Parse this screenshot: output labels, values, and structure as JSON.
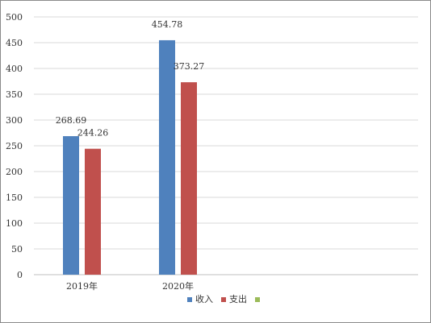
{
  "chart_data": {
    "type": "bar",
    "categories": [
      "2019年",
      "2020年",
      "",
      ""
    ],
    "series": [
      {
        "name": "收入",
        "color": "#4f81bd",
        "values": [
          268.69,
          454.78,
          null,
          null
        ]
      },
      {
        "name": "支出",
        "color": "#c0504d",
        "values": [
          244.26,
          373.27,
          null,
          null
        ]
      },
      {
        "name": "",
        "color": "#9bbb59",
        "values": [
          null,
          null,
          null,
          null
        ]
      }
    ],
    "data_labels": [
      [
        "268.69",
        "454.78"
      ],
      [
        "244.26",
        "373.27"
      ]
    ],
    "ylim": [
      0,
      500
    ],
    "yticks": [
      0,
      50,
      100,
      150,
      200,
      250,
      300,
      350,
      400,
      450,
      500
    ],
    "grid": true,
    "legend_position": "bottom"
  }
}
